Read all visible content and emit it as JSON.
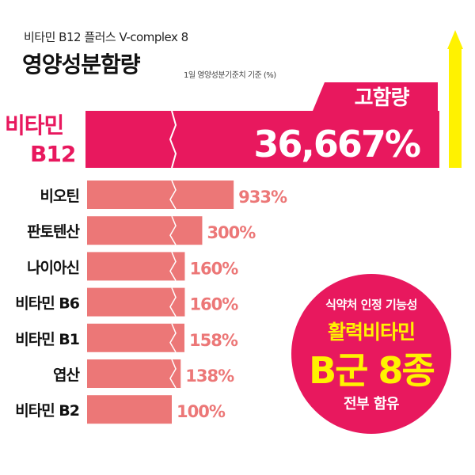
{
  "header": {
    "subtitle": "비타민 B12 플러스 V-complex 8",
    "title": "영양성분함량",
    "unit_note": "1일 영양성분기준치 기준 (%)"
  },
  "chart_data": {
    "type": "bar",
    "orientation": "horizontal",
    "axis_break": true,
    "categories": [
      "비타민 B12",
      "비오틴",
      "판토텐산",
      "나이아신",
      "비타민 B6",
      "비타민 B1",
      "엽산",
      "비타민 B2"
    ],
    "values": [
      36667,
      933,
      300,
      160,
      160,
      158,
      138,
      100
    ],
    "value_labels": [
      "36,667%",
      "933%",
      "300%",
      "160%",
      "160%",
      "158%",
      "138%",
      "100%"
    ],
    "highlight_label": "고함량",
    "colors": {
      "highlight": "#e8185e",
      "bar": "#ec7777",
      "arrow": "#fff200"
    }
  },
  "badge": {
    "line1": "식약처 인정 기능성",
    "line2": "활력비타민",
    "line3": "B군 8종",
    "line4": "전부 함유"
  }
}
